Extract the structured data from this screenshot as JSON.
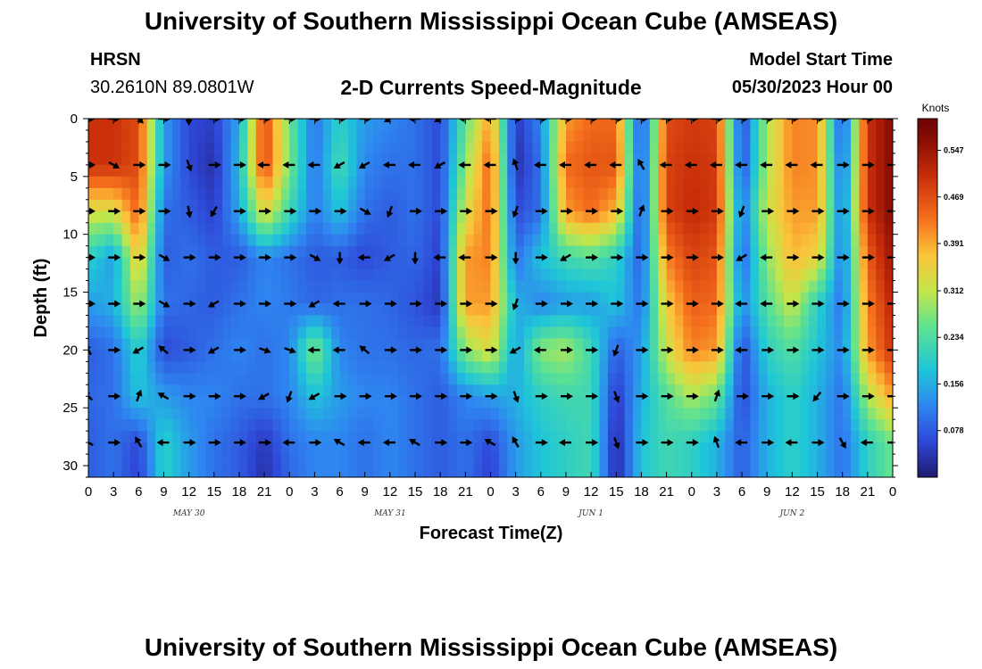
{
  "header": {
    "title": "University of Southern Mississippi Ocean Cube (AMSEAS)",
    "station": "HRSN",
    "coords": "30.2610N  89.0801W",
    "plot_title": "2-D Currents Speed-Magnitude",
    "model_label": "Model Start Time",
    "model_time": "05/30/2023 Hour 00"
  },
  "footer": {
    "title": "University of Southern Mississippi Ocean Cube (AMSEAS)"
  },
  "chart_data": {
    "type": "heatmap",
    "title": "2-D Currents Speed-Magnitude",
    "xlabel": "Forecast Time(Z)",
    "ylabel": "Depth (ft)",
    "x_ticks": [
      "0",
      "3",
      "6",
      "9",
      "12",
      "15",
      "18",
      "21",
      "0",
      "3",
      "6",
      "9",
      "12",
      "15",
      "18",
      "21",
      "0",
      "3",
      "6",
      "9",
      "12",
      "15",
      "18",
      "21",
      "0",
      "3",
      "6",
      "9",
      "12",
      "15",
      "18",
      "21",
      "0"
    ],
    "x_range_hours": [
      0,
      96
    ],
    "date_labels": [
      {
        "label": "MAY 30",
        "hour": 12
      },
      {
        "label": "MAY 31",
        "hour": 36
      },
      {
        "label": "JUN 1",
        "hour": 60
      },
      {
        "label": "JUN 2",
        "hour": 84
      }
    ],
    "y_ticks": [
      "0",
      "5",
      "10",
      "15",
      "20",
      "25",
      "30"
    ],
    "ylim": [
      0,
      31
    ],
    "y_inverted": true,
    "colorbar": {
      "title": "Knots",
      "tick_labels": [
        "0.547",
        "0.469",
        "0.391",
        "0.312",
        "0.234",
        "0.156",
        "0.078"
      ],
      "tick_values": [
        0.547,
        0.469,
        0.391,
        0.312,
        0.234,
        0.156,
        0.078
      ],
      "range": [
        0,
        0.6
      ]
    },
    "depths_ft": [
      0,
      4,
      8,
      12,
      16,
      20,
      24,
      28,
      31
    ],
    "hours": [
      0,
      3,
      6,
      9,
      12,
      15,
      18,
      21,
      24,
      27,
      30,
      33,
      36,
      39,
      42,
      45,
      48,
      51,
      54,
      57,
      60,
      63,
      66,
      69,
      72,
      75,
      78,
      81,
      84,
      87,
      90,
      93,
      96
    ],
    "speed_knots": [
      [
        0.5,
        0.5,
        0.47,
        0.14,
        0.06,
        0.05,
        0.15,
        0.48,
        0.26,
        0.1,
        0.2,
        0.14,
        0.12,
        0.1,
        0.06,
        0.25,
        0.4,
        0.04,
        0.12,
        0.4,
        0.44,
        0.44,
        0.05,
        0.47,
        0.49,
        0.48,
        0.05,
        0.3,
        0.42,
        0.41,
        0.06,
        0.5,
        0.57
      ],
      [
        0.5,
        0.5,
        0.47,
        0.14,
        0.06,
        0.03,
        0.17,
        0.48,
        0.27,
        0.1,
        0.23,
        0.12,
        0.1,
        0.1,
        0.06,
        0.28,
        0.45,
        0.03,
        0.1,
        0.44,
        0.46,
        0.46,
        0.06,
        0.48,
        0.5,
        0.49,
        0.06,
        0.3,
        0.42,
        0.41,
        0.08,
        0.5,
        0.57
      ],
      [
        0.33,
        0.33,
        0.45,
        0.1,
        0.08,
        0.05,
        0.15,
        0.35,
        0.22,
        0.11,
        0.18,
        0.1,
        0.08,
        0.1,
        0.06,
        0.33,
        0.44,
        0.06,
        0.1,
        0.4,
        0.44,
        0.38,
        0.06,
        0.48,
        0.51,
        0.49,
        0.1,
        0.32,
        0.4,
        0.4,
        0.1,
        0.5,
        0.57
      ],
      [
        0.2,
        0.14,
        0.37,
        0.08,
        0.1,
        0.08,
        0.08,
        0.12,
        0.1,
        0.08,
        0.08,
        0.06,
        0.08,
        0.09,
        0.05,
        0.4,
        0.42,
        0.1,
        0.18,
        0.22,
        0.24,
        0.2,
        0.08,
        0.42,
        0.48,
        0.46,
        0.08,
        0.28,
        0.38,
        0.35,
        0.1,
        0.45,
        0.55
      ],
      [
        0.14,
        0.16,
        0.3,
        0.1,
        0.09,
        0.08,
        0.1,
        0.12,
        0.11,
        0.09,
        0.1,
        0.1,
        0.09,
        0.07,
        0.04,
        0.4,
        0.4,
        0.16,
        0.12,
        0.14,
        0.14,
        0.18,
        0.1,
        0.36,
        0.45,
        0.44,
        0.12,
        0.24,
        0.32,
        0.2,
        0.1,
        0.42,
        0.52
      ],
      [
        0.08,
        0.1,
        0.2,
        0.06,
        0.08,
        0.1,
        0.12,
        0.1,
        0.12,
        0.28,
        0.12,
        0.1,
        0.1,
        0.09,
        0.1,
        0.28,
        0.34,
        0.14,
        0.28,
        0.3,
        0.22,
        0.08,
        0.14,
        0.32,
        0.42,
        0.4,
        0.06,
        0.2,
        0.24,
        0.18,
        0.12,
        0.4,
        0.5
      ],
      [
        0.09,
        0.1,
        0.18,
        0.14,
        0.12,
        0.12,
        0.1,
        0.1,
        0.12,
        0.18,
        0.14,
        0.12,
        0.12,
        0.1,
        0.08,
        0.12,
        0.14,
        0.16,
        0.2,
        0.22,
        0.22,
        0.04,
        0.16,
        0.24,
        0.3,
        0.26,
        0.06,
        0.16,
        0.2,
        0.16,
        0.1,
        0.3,
        0.4
      ],
      [
        0.08,
        0.1,
        0.06,
        0.2,
        0.14,
        0.1,
        0.08,
        0.04,
        0.1,
        0.12,
        0.12,
        0.1,
        0.12,
        0.1,
        0.08,
        0.1,
        0.06,
        0.14,
        0.18,
        0.2,
        0.22,
        0.02,
        0.18,
        0.22,
        0.2,
        0.16,
        0.08,
        0.16,
        0.2,
        0.16,
        0.1,
        0.2,
        0.26
      ],
      [
        0.08,
        0.1,
        0.05,
        0.2,
        0.14,
        0.1,
        0.08,
        0.03,
        0.09,
        0.12,
        0.12,
        0.1,
        0.12,
        0.1,
        0.08,
        0.1,
        0.05,
        0.14,
        0.18,
        0.2,
        0.22,
        0.02,
        0.18,
        0.22,
        0.2,
        0.16,
        0.08,
        0.16,
        0.2,
        0.16,
        0.1,
        0.2,
        0.26
      ]
    ],
    "arrow_depths_ft": [
      0,
      4,
      8,
      12,
      16,
      20,
      24,
      28
    ],
    "arrow_directions_deg": [
      [
        90,
        90,
        135,
        90,
        180,
        90,
        90,
        90,
        90,
        90,
        90,
        90,
        240,
        270,
        240,
        270,
        270,
        90,
        90,
        90,
        90,
        90,
        90,
        90,
        90,
        90,
        90,
        90,
        90,
        90,
        90,
        90,
        90
      ],
      [
        90,
        120,
        90,
        90,
        160,
        90,
        90,
        270,
        270,
        270,
        240,
        240,
        270,
        270,
        240,
        270,
        270,
        340,
        270,
        270,
        270,
        270,
        330,
        270,
        270,
        270,
        270,
        270,
        270,
        270,
        90,
        90,
        90
      ],
      [
        90,
        90,
        90,
        90,
        170,
        210,
        90,
        90,
        90,
        90,
        90,
        120,
        200,
        90,
        90,
        90,
        90,
        200,
        90,
        90,
        90,
        90,
        20,
        90,
        90,
        90,
        200,
        90,
        90,
        90,
        90,
        90,
        90
      ],
      [
        90,
        90,
        90,
        120,
        90,
        90,
        90,
        90,
        90,
        120,
        180,
        270,
        240,
        180,
        270,
        270,
        90,
        180,
        90,
        240,
        90,
        90,
        90,
        90,
        90,
        90,
        240,
        270,
        90,
        90,
        90,
        90,
        90
      ],
      [
        90,
        90,
        90,
        120,
        90,
        240,
        90,
        90,
        90,
        240,
        270,
        90,
        90,
        90,
        90,
        90,
        90,
        200,
        90,
        90,
        90,
        90,
        90,
        90,
        90,
        90,
        270,
        270,
        90,
        90,
        90,
        90,
        90
      ],
      [
        330,
        90,
        240,
        310,
        90,
        240,
        90,
        110,
        110,
        270,
        270,
        310,
        90,
        90,
        90,
        90,
        90,
        240,
        270,
        90,
        90,
        200,
        90,
        90,
        90,
        90,
        270,
        90,
        90,
        90,
        90,
        90,
        90
      ],
      [
        315,
        90,
        20,
        300,
        90,
        90,
        90,
        240,
        200,
        240,
        90,
        90,
        90,
        90,
        90,
        90,
        90,
        160,
        90,
        90,
        90,
        160,
        90,
        90,
        90,
        20,
        90,
        90,
        90,
        220,
        90,
        90,
        90
      ],
      [
        300,
        90,
        330,
        270,
        90,
        90,
        90,
        90,
        270,
        90,
        300,
        270,
        270,
        300,
        90,
        90,
        300,
        330,
        90,
        270,
        90,
        160,
        90,
        90,
        90,
        340,
        270,
        90,
        270,
        90,
        150,
        270,
        90
      ]
    ]
  }
}
